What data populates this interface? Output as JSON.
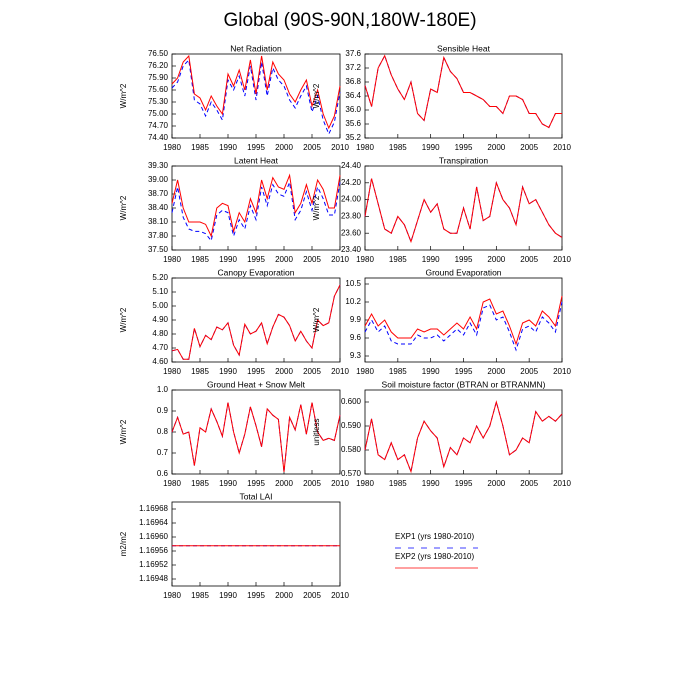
{
  "title": "Global (90S-90N,180W-180E)",
  "x": [
    1980,
    1981,
    1982,
    1983,
    1984,
    1985,
    1986,
    1987,
    1988,
    1989,
    1990,
    1991,
    1992,
    1993,
    1994,
    1995,
    1996,
    1997,
    1998,
    1999,
    2000,
    2001,
    2002,
    2003,
    2004,
    2005,
    2006,
    2007,
    2008,
    2009,
    2010
  ],
  "xlim": [
    1980,
    2010
  ],
  "xticks": [
    1980,
    1985,
    1990,
    1995,
    2000,
    2005,
    2010
  ],
  "legend": [
    {
      "name": "EXP1 (yrs 1980-2010)",
      "color": "#0000ff",
      "dashed": true
    },
    {
      "name": "EXP2 (yrs 1980-2010)",
      "color": "#ff0000",
      "dashed": false
    }
  ],
  "chart_data": [
    {
      "type": "line",
      "title": "Net Radiation",
      "ylabel": "W/m^2",
      "ylim": [
        74.4,
        76.5
      ],
      "yticks": [
        {
          "value": 74.4,
          "label": "74.40"
        },
        {
          "value": 74.7,
          "label": "74.70"
        },
        {
          "value": 75.0,
          "label": "75.00"
        },
        {
          "value": 75.3,
          "label": "75.30"
        },
        {
          "value": 75.6,
          "label": "75.60"
        },
        {
          "value": 75.9,
          "label": "75.90"
        },
        {
          "value": 76.2,
          "label": "76.20"
        },
        {
          "value": 76.5,
          "label": "76.50"
        }
      ],
      "series": [
        {
          "values": [
            75.65,
            75.8,
            76.2,
            76.35,
            75.35,
            75.25,
            74.95,
            75.3,
            75.1,
            74.85,
            75.85,
            75.6,
            75.95,
            75.45,
            76.2,
            75.35,
            76.3,
            75.45,
            76.15,
            75.85,
            75.7,
            75.35,
            75.15,
            75.45,
            75.7,
            75.05,
            75.45,
            74.85,
            74.5,
            74.8,
            75.55
          ]
        },
        {
          "values": [
            75.75,
            75.9,
            76.3,
            76.45,
            75.5,
            75.4,
            75.1,
            75.45,
            75.2,
            75.0,
            76.0,
            75.7,
            76.1,
            75.6,
            76.35,
            75.5,
            76.45,
            75.6,
            76.3,
            76.0,
            75.85,
            75.5,
            75.3,
            75.6,
            75.85,
            75.2,
            75.6,
            75.0,
            74.65,
            74.95,
            75.7
          ]
        }
      ]
    },
    {
      "type": "line",
      "title": "Sensible Heat",
      "ylabel": "W/m^2",
      "ylim": [
        35.2,
        37.6
      ],
      "yticks": [
        35.2,
        35.6,
        {
          "value": 36.0,
          "label": "36.0"
        },
        36.4,
        36.8,
        37.2,
        37.6
      ],
      "series": [
        {
          "values": [
            36.7,
            36.1,
            37.2,
            37.55,
            37.0,
            36.6,
            36.3,
            36.8,
            35.9,
            35.7,
            36.6,
            36.5,
            37.5,
            37.1,
            36.9,
            36.5,
            36.5,
            36.4,
            36.3,
            36.1,
            36.1,
            35.9,
            36.4,
            36.4,
            36.3,
            35.9,
            35.9,
            35.6,
            35.5,
            35.9,
            35.9
          ]
        },
        {
          "values": [
            36.7,
            36.1,
            37.2,
            37.55,
            37.0,
            36.6,
            36.3,
            36.8,
            35.9,
            35.7,
            36.6,
            36.5,
            37.5,
            37.1,
            36.9,
            36.5,
            36.5,
            36.4,
            36.3,
            36.1,
            36.1,
            35.9,
            36.4,
            36.4,
            36.3,
            35.9,
            35.9,
            35.6,
            35.5,
            35.9,
            35.9
          ]
        }
      ]
    },
    {
      "type": "line",
      "title": "Latent Heat",
      "ylabel": "W/m^2",
      "ylim": [
        37.5,
        39.3
      ],
      "yticks": [
        {
          "value": 37.5,
          "label": "37.50"
        },
        {
          "value": 37.8,
          "label": "37.80"
        },
        {
          "value": 38.1,
          "label": "38.10"
        },
        {
          "value": 38.4,
          "label": "38.40"
        },
        {
          "value": 38.7,
          "label": "38.70"
        },
        {
          "value": 39.0,
          "label": "39.00"
        },
        {
          "value": 39.3,
          "label": "39.30"
        }
      ],
      "series": [
        {
          "values": [
            38.3,
            38.85,
            38.2,
            37.95,
            37.9,
            37.9,
            37.85,
            37.7,
            38.25,
            38.35,
            38.3,
            37.8,
            38.15,
            37.95,
            38.45,
            38.15,
            38.85,
            38.45,
            38.9,
            38.7,
            38.65,
            38.95,
            38.15,
            38.35,
            38.75,
            38.35,
            38.85,
            38.6,
            38.25,
            38.25,
            38.95
          ]
        },
        {
          "values": [
            38.5,
            39.0,
            38.4,
            38.1,
            38.1,
            38.1,
            38.05,
            37.8,
            38.4,
            38.5,
            38.45,
            37.9,
            38.3,
            38.1,
            38.6,
            38.3,
            39.0,
            38.6,
            39.05,
            38.85,
            38.8,
            39.1,
            38.3,
            38.5,
            38.9,
            38.5,
            39.0,
            38.8,
            38.4,
            38.4,
            39.1
          ]
        }
      ]
    },
    {
      "type": "line",
      "title": "Transpiration",
      "ylabel": "W/m^2",
      "ylim": [
        23.4,
        24.4
      ],
      "yticks": [
        {
          "value": 23.4,
          "label": "23.40"
        },
        {
          "value": 23.6,
          "label": "23.60"
        },
        {
          "value": 23.8,
          "label": "23.80"
        },
        {
          "value": 24.0,
          "label": "24.00"
        },
        {
          "value": 24.2,
          "label": "24.20"
        },
        {
          "value": 24.4,
          "label": "24.40"
        }
      ],
      "series": [
        {
          "values": [
            23.8,
            24.25,
            23.95,
            23.65,
            23.6,
            23.8,
            23.7,
            23.5,
            23.75,
            24.0,
            23.85,
            23.95,
            23.65,
            23.6,
            23.6,
            23.9,
            23.65,
            24.15,
            23.75,
            23.8,
            24.2,
            24.0,
            23.9,
            23.7,
            24.15,
            23.95,
            24.0,
            23.85,
            23.7,
            23.6,
            23.55
          ]
        },
        {
          "values": [
            23.8,
            24.25,
            23.95,
            23.65,
            23.6,
            23.8,
            23.7,
            23.5,
            23.75,
            24.0,
            23.85,
            23.95,
            23.65,
            23.6,
            23.6,
            23.9,
            23.65,
            24.15,
            23.75,
            23.8,
            24.2,
            24.0,
            23.9,
            23.7,
            24.15,
            23.95,
            24.0,
            23.85,
            23.7,
            23.6,
            23.55
          ]
        }
      ]
    },
    {
      "type": "line",
      "title": "Canopy Evaporation",
      "ylabel": "W/m^2",
      "ylim": [
        4.6,
        5.2
      ],
      "yticks": [
        {
          "value": 4.6,
          "label": "4.60"
        },
        {
          "value": 4.7,
          "label": "4.70"
        },
        {
          "value": 4.8,
          "label": "4.80"
        },
        {
          "value": 4.9,
          "label": "4.90"
        },
        {
          "value": 5.0,
          "label": "5.00"
        },
        {
          "value": 5.1,
          "label": "5.10"
        },
        {
          "value": 5.2,
          "label": "5.20"
        }
      ],
      "series": [
        {
          "values": [
            4.68,
            4.69,
            4.62,
            4.62,
            4.84,
            4.71,
            4.79,
            4.76,
            4.85,
            4.83,
            4.88,
            4.72,
            4.65,
            4.87,
            4.8,
            4.82,
            4.88,
            4.73,
            4.85,
            4.94,
            4.92,
            4.86,
            4.75,
            4.82,
            4.75,
            4.7,
            4.9,
            4.86,
            4.88,
            5.07,
            5.15
          ]
        },
        {
          "values": [
            4.68,
            4.69,
            4.62,
            4.62,
            4.84,
            4.71,
            4.79,
            4.76,
            4.85,
            4.83,
            4.88,
            4.72,
            4.65,
            4.87,
            4.8,
            4.82,
            4.88,
            4.73,
            4.85,
            4.94,
            4.92,
            4.86,
            4.75,
            4.82,
            4.75,
            4.7,
            4.9,
            4.86,
            4.88,
            5.07,
            5.15
          ]
        }
      ]
    },
    {
      "type": "line",
      "title": "Ground Evaporation",
      "ylabel": "W/m^2",
      "ylim": [
        9.2,
        10.6
      ],
      "yticks": [
        9.3,
        9.6,
        9.9,
        10.2,
        10.5
      ],
      "series": [
        {
          "values": [
            9.7,
            9.9,
            9.7,
            9.8,
            9.55,
            9.5,
            9.5,
            9.5,
            9.65,
            9.6,
            9.6,
            9.65,
            9.55,
            9.65,
            9.75,
            9.65,
            9.85,
            9.65,
            10.1,
            10.15,
            9.9,
            9.95,
            9.7,
            9.4,
            9.75,
            9.8,
            9.7,
            9.95,
            9.85,
            9.7,
            10.2
          ]
        },
        {
          "values": [
            9.8,
            10.0,
            9.8,
            9.9,
            9.7,
            9.6,
            9.6,
            9.6,
            9.75,
            9.7,
            9.75,
            9.75,
            9.65,
            9.75,
            9.85,
            9.75,
            9.95,
            9.75,
            10.2,
            10.25,
            10.0,
            10.05,
            9.8,
            9.5,
            9.85,
            9.9,
            9.8,
            10.05,
            9.95,
            9.8,
            10.3
          ]
        }
      ]
    },
    {
      "type": "line",
      "title": "Ground Heat + Snow Melt",
      "ylabel": "W/m^2",
      "ylim": [
        0.6,
        1.0
      ],
      "yticks": [
        0.6,
        0.7,
        0.8,
        0.9,
        {
          "value": 1.0,
          "label": "1.0"
        }
      ],
      "series": [
        {
          "values": [
            0.8,
            0.87,
            0.79,
            0.8,
            0.64,
            0.82,
            0.8,
            0.91,
            0.85,
            0.78,
            0.94,
            0.8,
            0.7,
            0.79,
            0.92,
            0.83,
            0.73,
            0.91,
            0.88,
            0.86,
            0.61,
            0.87,
            0.81,
            0.93,
            0.79,
            0.94,
            0.8,
            0.76,
            0.77,
            0.76,
            0.88
          ]
        },
        {
          "values": [
            0.8,
            0.87,
            0.79,
            0.8,
            0.64,
            0.82,
            0.8,
            0.91,
            0.85,
            0.78,
            0.94,
            0.8,
            0.7,
            0.79,
            0.92,
            0.83,
            0.73,
            0.91,
            0.88,
            0.86,
            0.61,
            0.87,
            0.81,
            0.93,
            0.79,
            0.94,
            0.8,
            0.76,
            0.77,
            0.76,
            0.88
          ]
        }
      ]
    },
    {
      "type": "line",
      "title": "Soil moisture factor (BTRAN or BTRANMN)",
      "ylabel": "unitless",
      "ylim": [
        0.57,
        0.605
      ],
      "yticks": [
        {
          "value": 0.57,
          "label": "0.570"
        },
        {
          "value": 0.58,
          "label": "0.580"
        },
        {
          "value": 0.59,
          "label": "0.590"
        },
        {
          "value": 0.6,
          "label": "0.600"
        }
      ],
      "series": [
        {
          "values": [
            0.58,
            0.593,
            0.578,
            0.576,
            0.583,
            0.576,
            0.578,
            0.571,
            0.585,
            0.592,
            0.588,
            0.585,
            0.573,
            0.581,
            0.578,
            0.585,
            0.583,
            0.59,
            0.585,
            0.59,
            0.6,
            0.59,
            0.578,
            0.58,
            0.585,
            0.583,
            0.596,
            0.592,
            0.594,
            0.592,
            0.595
          ]
        },
        {
          "values": [
            0.58,
            0.593,
            0.578,
            0.576,
            0.583,
            0.576,
            0.578,
            0.571,
            0.585,
            0.592,
            0.588,
            0.585,
            0.573,
            0.581,
            0.578,
            0.585,
            0.583,
            0.59,
            0.585,
            0.59,
            0.6,
            0.59,
            0.578,
            0.58,
            0.585,
            0.583,
            0.596,
            0.592,
            0.594,
            0.592,
            0.595
          ]
        }
      ]
    },
    {
      "type": "line",
      "title": "Total LAI",
      "ylabel": "m2/m2",
      "ylim": [
        1.16946,
        1.1697
      ],
      "yticks": [
        1.16948,
        1.16952,
        1.16956,
        {
          "value": 1.1696,
          "label": "1.16960"
        },
        1.16964,
        1.16968
      ],
      "series": [
        {
          "values": [
            1.169575,
            1.169575,
            1.169575,
            1.169575,
            1.169575,
            1.169575,
            1.169575,
            1.169575,
            1.169575,
            1.169575,
            1.169575,
            1.169575,
            1.169575,
            1.169575,
            1.169575,
            1.169575,
            1.169575,
            1.169575,
            1.169575,
            1.169575,
            1.169575,
            1.169575,
            1.169575,
            1.169575,
            1.169575,
            1.169575,
            1.169575,
            1.169575,
            1.169575,
            1.169575,
            1.169575
          ]
        },
        {
          "values": [
            1.169575,
            1.169575,
            1.169575,
            1.169575,
            1.169575,
            1.169575,
            1.169575,
            1.169575,
            1.169575,
            1.169575,
            1.169575,
            1.169575,
            1.169575,
            1.169575,
            1.169575,
            1.169575,
            1.169575,
            1.169575,
            1.169575,
            1.169575,
            1.169575,
            1.169575,
            1.169575,
            1.169575,
            1.169575,
            1.169575,
            1.169575,
            1.169575,
            1.169575,
            1.169575,
            1.169575
          ]
        }
      ]
    }
  ]
}
